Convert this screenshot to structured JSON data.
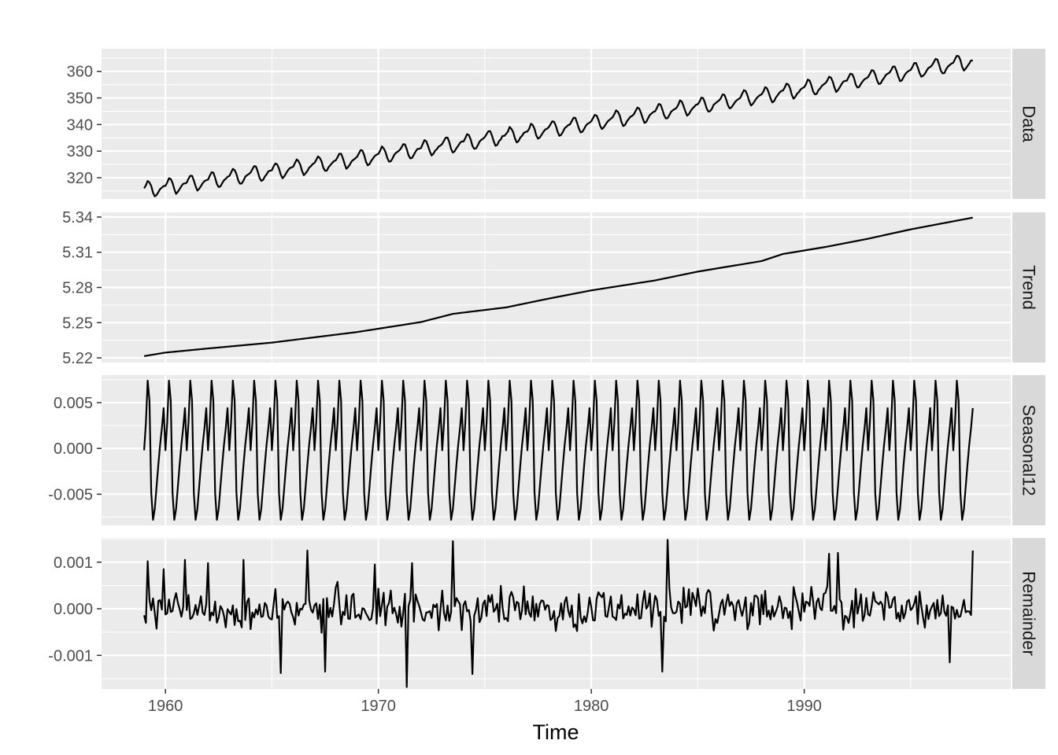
{
  "chart_data": {
    "type": "line",
    "xlabel": "Time",
    "x_ticks": [
      1960,
      1970,
      1980,
      1990
    ],
    "xlim": [
      1957.0,
      1999.7
    ],
    "x_start": 1959.0,
    "x_end": 1997.917,
    "n_points": 468,
    "panels": [
      {
        "name": "Data",
        "ylim": [
          312.0,
          368.5
        ],
        "y_ticks": [
          320,
          330,
          340,
          350,
          360
        ],
        "y_tick_labels": [
          "320",
          "330",
          "340",
          "350",
          "360"
        ],
        "trend_start": 315.4,
        "trend_end": 364.0,
        "seasonal_amplitude": 3.0
      },
      {
        "name": "Trend",
        "ylim": [
          5.216,
          5.344
        ],
        "y_ticks": [
          5.22,
          5.25,
          5.28,
          5.31,
          5.34
        ],
        "y_tick_labels": [
          "5.22",
          "5.25",
          "5.28",
          "5.31",
          "5.34"
        ],
        "knots_x": [
          1959.0,
          1960.0,
          1962.0,
          1965.0,
          1967.0,
          1969.0,
          1972.0,
          1973.5,
          1976.0,
          1978.0,
          1980.0,
          1983.0,
          1985.0,
          1988.0,
          1989.0,
          1991.0,
          1993.0,
          1995.0,
          1997.917
        ],
        "knots_y": [
          5.2215,
          5.2245,
          5.228,
          5.233,
          5.2375,
          5.242,
          5.2505,
          5.2575,
          5.263,
          5.2705,
          5.2775,
          5.286,
          5.2935,
          5.3025,
          5.3085,
          5.3145,
          5.3215,
          5.3295,
          5.3395
        ]
      },
      {
        "name": "Seasonal12",
        "ylim": [
          -0.0084,
          0.008
        ],
        "y_ticks": [
          -0.005,
          0.0,
          0.005
        ],
        "y_tick_labels": [
          "-0.005",
          "0.000",
          "0.005"
        ],
        "monthly_pattern": [
          -0.0002,
          0.0028,
          0.0074,
          0.0052,
          -0.0048,
          -0.0078,
          -0.0066,
          -0.0042,
          -0.0018,
          0.0004,
          0.0022,
          0.0044
        ]
      },
      {
        "name": "Remainder",
        "ylim": [
          -0.00172,
          0.00152
        ],
        "y_ticks": [
          -0.001,
          0.0,
          0.001
        ],
        "y_tick_labels": [
          "-0.001",
          "0.000",
          "0.001"
        ],
        "spikes_x": [
          1959.17,
          1959.9,
          1960.9,
          1962.0,
          1963.7,
          1965.4,
          1966.7,
          1967.5,
          1969.8,
          1971.3,
          1971.6,
          1973.5,
          1974.4,
          1983.3,
          1983.6,
          1991.2,
          1991.6,
          1996.8,
          1997.917
        ],
        "spikes_y": [
          0.00102,
          0.00085,
          0.00105,
          0.00098,
          0.00105,
          -0.00138,
          0.00125,
          -0.00135,
          0.00095,
          -0.00168,
          0.00098,
          0.00145,
          -0.0014,
          -0.00135,
          0.00148,
          0.00118,
          0.0012,
          -0.00115,
          0.00125
        ],
        "noise_amplitude": 0.00038
      }
    ]
  },
  "colors": {
    "panel_background": "#ebebeb",
    "grid_major": "#ffffff",
    "strip_background": "#d9d9d9",
    "line": "#000000",
    "tick_label": "#4d4d4d",
    "tick_mark": "#333333"
  }
}
